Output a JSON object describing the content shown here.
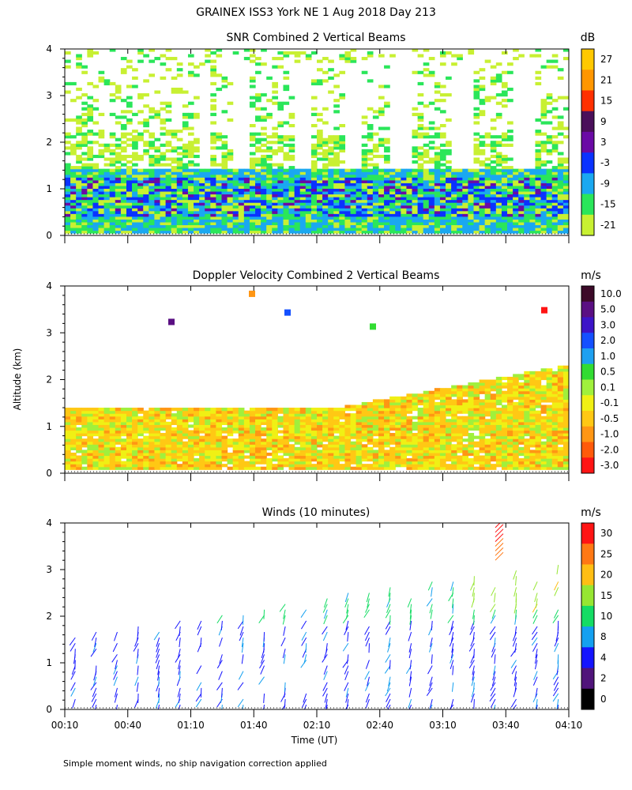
{
  "page": {
    "title": "GRAINEX ISS3 York NE   1 Aug 2018 Day 213",
    "footnote": "Simple moment winds, no ship navigation correction applied"
  },
  "chart_data": [
    {
      "type": "heatmap",
      "title": "SNR Combined 2 Vertical Beams",
      "unit": "dB",
      "ylabel": "",
      "ylim": [
        0,
        4
      ],
      "yticks": [
        "0",
        "1",
        "2",
        "3",
        "4"
      ],
      "xlim": [
        "00:10",
        "04:10"
      ],
      "colorbar": {
        "labels": [
          "27",
          "21",
          "15",
          "9",
          "3",
          "-3",
          "-9",
          "-15",
          "-21"
        ],
        "colors": [
          "#ffc800",
          "#ff9600",
          "#ff3000",
          "#4a0f5a",
          "#6a0aa5",
          "#0a32ff",
          "#1aa8f0",
          "#2ae65a",
          "#c8f032"
        ]
      },
      "field_notes": "Strong returns (-3 to 3 dB, blue/purple) in a layer ~0.2-1.4 km; weaker (-21 to -9 dB) patchy returns above up to 4 km."
    },
    {
      "type": "heatmap",
      "title": "Doppler Velocity Combined 2 Vertical Beams",
      "unit": "m/s",
      "ylabel": "Altitude (km)",
      "ylim": [
        0,
        4
      ],
      "yticks": [
        "0",
        "1",
        "2",
        "3",
        "4"
      ],
      "xlim": [
        "00:10",
        "04:10"
      ],
      "colorbar": {
        "labels": [
          "10.0",
          "5.0",
          "3.0",
          "2.0",
          "1.0",
          "0.5",
          "0.1",
          "-0.1",
          "-0.5",
          "-1.0",
          "-2.0",
          "-3.0"
        ],
        "colors": [
          "#3c0a28",
          "#5a0f82",
          "#3c14c8",
          "#1450ff",
          "#1ea0f0",
          "#32dc32",
          "#a0f03c",
          "#f0f014",
          "#ffc814",
          "#ff9614",
          "#ff5a0a",
          "#ff1414"
        ]
      },
      "field_notes": "Mostly -0.1 to -1.0 m/s (yellow/orange) below ~1.4 km; rising echo top to ~2.3 km after 03:10."
    },
    {
      "type": "scatter",
      "title": "Winds (10 minutes)",
      "unit": "m/s",
      "xlabel": "Time (UT)",
      "ylim": [
        0,
        4
      ],
      "yticks": [
        "0",
        "1",
        "2",
        "3",
        "4"
      ],
      "xticks": [
        "00:10",
        "00:40",
        "01:10",
        "01:40",
        "02:10",
        "02:40",
        "03:10",
        "03:40",
        "04:10"
      ],
      "colorbar": {
        "labels": [
          "30",
          "25",
          "20",
          "15",
          "10",
          "8",
          "4",
          "2",
          "0"
        ],
        "colors": [
          "#ff1414",
          "#ff7814",
          "#ffbe14",
          "#96e632",
          "#14dc64",
          "#14a0f0",
          "#1414ff",
          "#50147a",
          "#000000"
        ]
      },
      "wind_profiles_note": "Wind barbs every ~10 min at times 00:15-04:05, altitudes 0.1-4.0 km; mostly 2-8 m/s below 2 km, stronger (20-30 m/s) near 3.5-4 km around 03:35."
    }
  ]
}
